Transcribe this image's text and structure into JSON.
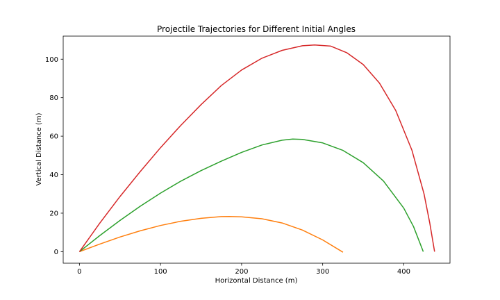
{
  "chart_data": {
    "type": "line",
    "title": "Projectile Trajectories for Different Initial Angles",
    "xlabel": "Horizontal Distance (m)",
    "ylabel": "Vertical Distance (m)",
    "xlim": [
      -20,
      457
    ],
    "ylim": [
      -6,
      112
    ],
    "x_ticks": [
      0,
      100,
      200,
      300,
      400
    ],
    "y_ticks": [
      0,
      20,
      40,
      60,
      80,
      100
    ],
    "grid": false,
    "legend": "none",
    "series": [
      {
        "color": "#ff7f0e",
        "points": [
          [
            0,
            0
          ],
          [
            25,
            3.9
          ],
          [
            50,
            7.6
          ],
          [
            75,
            10.8
          ],
          [
            100,
            13.6
          ],
          [
            125,
            15.8
          ],
          [
            150,
            17.3
          ],
          [
            175,
            18.2
          ],
          [
            185,
            18.3
          ],
          [
            200,
            18.1
          ],
          [
            225,
            17.1
          ],
          [
            250,
            14.9
          ],
          [
            275,
            11.2
          ],
          [
            300,
            6.1
          ],
          [
            325,
            -0.3
          ]
        ]
      },
      {
        "color": "#2ca02c",
        "points": [
          [
            0,
            0
          ],
          [
            25,
            8.3
          ],
          [
            50,
            16.2
          ],
          [
            75,
            23.6
          ],
          [
            100,
            30.4
          ],
          [
            125,
            36.6
          ],
          [
            150,
            42.1
          ],
          [
            175,
            47.0
          ],
          [
            200,
            51.6
          ],
          [
            225,
            55.4
          ],
          [
            250,
            57.9
          ],
          [
            263,
            58.5
          ],
          [
            275,
            58.3
          ],
          [
            300,
            56.5
          ],
          [
            325,
            52.6
          ],
          [
            350,
            46.2
          ],
          [
            375,
            36.7
          ],
          [
            400,
            22.6
          ],
          [
            412,
            13.0
          ],
          [
            424,
            0
          ]
        ]
      },
      {
        "color": "#d62728",
        "points": [
          [
            0,
            0
          ],
          [
            25,
            14.7
          ],
          [
            50,
            28.6
          ],
          [
            75,
            41.6
          ],
          [
            100,
            54.0
          ],
          [
            125,
            65.6
          ],
          [
            150,
            76.4
          ],
          [
            175,
            86.3
          ],
          [
            200,
            94.4
          ],
          [
            225,
            100.5
          ],
          [
            250,
            104.6
          ],
          [
            275,
            107.0
          ],
          [
            290,
            107.4
          ],
          [
            310,
            106.8
          ],
          [
            330,
            103.3
          ],
          [
            350,
            97.2
          ],
          [
            370,
            87.6
          ],
          [
            390,
            73.4
          ],
          [
            410,
            52.8
          ],
          [
            425,
            30.0
          ],
          [
            432,
            15.0
          ],
          [
            438,
            0
          ]
        ]
      }
    ]
  }
}
